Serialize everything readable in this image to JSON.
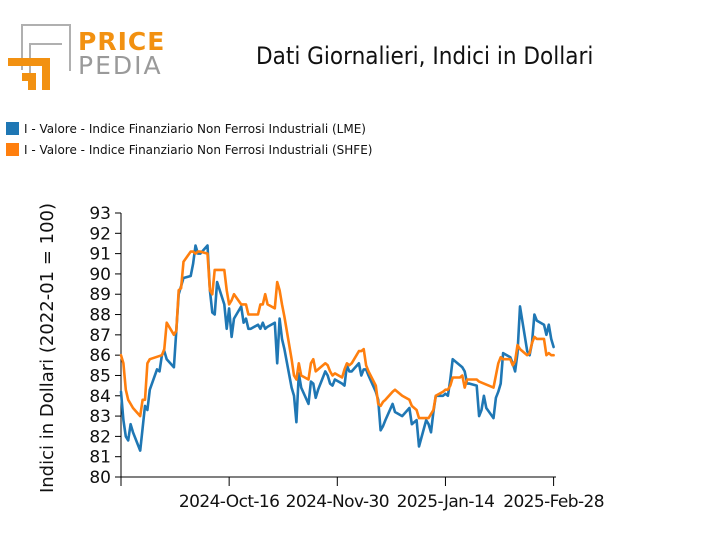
{
  "logo": {
    "line1": "PRICE",
    "line2": "PEDIA"
  },
  "chart_data": {
    "type": "line",
    "title": "Dati Giornalieri, Indici in Dollari",
    "ylabel": "Indici in Dollari (2022-01 = 100)",
    "xlabel": "",
    "ylim": [
      80,
      93
    ],
    "yticks": [
      80,
      81,
      82,
      83,
      84,
      85,
      86,
      87,
      88,
      89,
      90,
      91,
      92,
      93
    ],
    "xlim": [
      "2024-09-01",
      "2025-03-01"
    ],
    "xticks": [
      "2024-10-16",
      "2024-11-30",
      "2025-01-14",
      "2025-02-28"
    ],
    "xtick_labels": [
      "2024-Oct-16",
      "2024-Nov-30",
      "2025-Jan-14",
      "2025-Feb-28"
    ],
    "legend_position": "top-left",
    "grid": false,
    "series": [
      {
        "name": "I - Valore - Indice Finanziario Non Ferrosi Industriali (LME)",
        "color": "#1f77b4",
        "points": [
          [
            "2024-09-01",
            84.2
          ],
          [
            "2024-09-02",
            82.8
          ],
          [
            "2024-09-03",
            82.0
          ],
          [
            "2024-09-04",
            81.8
          ],
          [
            "2024-09-05",
            82.6
          ],
          [
            "2024-09-06",
            82.2
          ],
          [
            "2024-09-09",
            81.3
          ],
          [
            "2024-09-10",
            82.4
          ],
          [
            "2024-09-11",
            83.5
          ],
          [
            "2024-09-12",
            83.3
          ],
          [
            "2024-09-13",
            84.3
          ],
          [
            "2024-09-16",
            85.3
          ],
          [
            "2024-09-17",
            85.2
          ],
          [
            "2024-09-18",
            86.0
          ],
          [
            "2024-09-19",
            86.2
          ],
          [
            "2024-09-20",
            85.8
          ],
          [
            "2024-09-23",
            85.4
          ],
          [
            "2024-09-24",
            87.2
          ],
          [
            "2024-09-25",
            89.0
          ],
          [
            "2024-09-26",
            89.4
          ],
          [
            "2024-09-27",
            89.8
          ],
          [
            "2024-09-30",
            89.9
          ],
          [
            "2024-10-01",
            90.5
          ],
          [
            "2024-10-02",
            91.4
          ],
          [
            "2024-10-03",
            91.0
          ],
          [
            "2024-10-04",
            91.0
          ],
          [
            "2024-10-07",
            91.4
          ],
          [
            "2024-10-08",
            89.2
          ],
          [
            "2024-10-09",
            88.1
          ],
          [
            "2024-10-10",
            88.0
          ],
          [
            "2024-10-11",
            89.6
          ],
          [
            "2024-10-14",
            88.5
          ],
          [
            "2024-10-15",
            87.3
          ],
          [
            "2024-10-16",
            88.3
          ],
          [
            "2024-10-17",
            86.9
          ],
          [
            "2024-10-18",
            87.8
          ],
          [
            "2024-10-21",
            88.4
          ],
          [
            "2024-10-22",
            87.6
          ],
          [
            "2024-10-23",
            87.8
          ],
          [
            "2024-10-24",
            87.3
          ],
          [
            "2024-10-25",
            87.3
          ],
          [
            "2024-10-28",
            87.5
          ],
          [
            "2024-10-29",
            87.3
          ],
          [
            "2024-10-30",
            87.6
          ],
          [
            "2024-10-31",
            87.3
          ],
          [
            "2024-11-01",
            87.4
          ],
          [
            "2024-11-04",
            87.6
          ],
          [
            "2024-11-05",
            85.6
          ],
          [
            "2024-11-06",
            87.8
          ],
          [
            "2024-11-07",
            86.8
          ],
          [
            "2024-11-08",
            86.3
          ],
          [
            "2024-11-11",
            84.4
          ],
          [
            "2024-11-12",
            84.0
          ],
          [
            "2024-11-13",
            82.7
          ],
          [
            "2024-11-14",
            85.1
          ],
          [
            "2024-11-15",
            84.4
          ],
          [
            "2024-11-18",
            83.6
          ],
          [
            "2024-11-19",
            84.7
          ],
          [
            "2024-11-20",
            84.6
          ],
          [
            "2024-11-21",
            83.9
          ],
          [
            "2024-11-22",
            84.3
          ],
          [
            "2024-11-25",
            85.2
          ],
          [
            "2024-11-26",
            85.0
          ],
          [
            "2024-11-27",
            84.6
          ],
          [
            "2024-11-28",
            84.5
          ],
          [
            "2024-11-29",
            84.8
          ],
          [
            "2024-12-02",
            84.6
          ],
          [
            "2024-12-03",
            84.5
          ],
          [
            "2024-12-04",
            85.5
          ],
          [
            "2024-12-05",
            85.2
          ],
          [
            "2024-12-06",
            85.2
          ],
          [
            "2024-12-09",
            85.6
          ],
          [
            "2024-12-10",
            85.0
          ],
          [
            "2024-12-11",
            85.3
          ],
          [
            "2024-12-12",
            85.3
          ],
          [
            "2024-12-13",
            85.0
          ],
          [
            "2024-12-16",
            84.2
          ],
          [
            "2024-12-17",
            83.8
          ],
          [
            "2024-12-18",
            82.3
          ],
          [
            "2024-12-19",
            82.5
          ],
          [
            "2024-12-20",
            82.8
          ],
          [
            "2024-12-23",
            83.6
          ],
          [
            "2024-12-24",
            83.2
          ],
          [
            "2024-12-27",
            83.0
          ],
          [
            "2024-12-30",
            83.4
          ],
          [
            "2024-12-31",
            82.6
          ],
          [
            "2025-01-02",
            82.8
          ],
          [
            "2025-01-03",
            81.5
          ],
          [
            "2025-01-06",
            82.8
          ],
          [
            "2025-01-07",
            82.6
          ],
          [
            "2025-01-08",
            82.2
          ],
          [
            "2025-01-09",
            83.2
          ],
          [
            "2025-01-10",
            84.0
          ],
          [
            "2025-01-13",
            84.0
          ],
          [
            "2025-01-14",
            84.1
          ],
          [
            "2025-01-15",
            84.0
          ],
          [
            "2025-01-16",
            84.8
          ],
          [
            "2025-01-17",
            85.8
          ],
          [
            "2025-01-20",
            85.5
          ],
          [
            "2025-01-21",
            85.4
          ],
          [
            "2025-01-22",
            85.2
          ],
          [
            "2025-01-23",
            84.6
          ],
          [
            "2025-01-24",
            84.6
          ],
          [
            "2025-01-27",
            84.5
          ],
          [
            "2025-01-28",
            83.0
          ],
          [
            "2025-01-29",
            83.3
          ],
          [
            "2025-01-30",
            84.0
          ],
          [
            "2025-01-31",
            83.4
          ],
          [
            "2025-02-03",
            82.9
          ],
          [
            "2025-02-04",
            83.9
          ],
          [
            "2025-02-05",
            84.2
          ],
          [
            "2025-02-06",
            84.6
          ],
          [
            "2025-02-07",
            86.1
          ],
          [
            "2025-02-10",
            85.9
          ],
          [
            "2025-02-11",
            85.6
          ],
          [
            "2025-02-12",
            85.2
          ],
          [
            "2025-02-13",
            86.1
          ],
          [
            "2025-02-14",
            88.4
          ],
          [
            "2025-02-17",
            86.2
          ],
          [
            "2025-02-18",
            86.0
          ],
          [
            "2025-02-19",
            86.6
          ],
          [
            "2025-02-20",
            88.0
          ],
          [
            "2025-02-21",
            87.7
          ],
          [
            "2025-02-24",
            87.5
          ],
          [
            "2025-02-25",
            87.0
          ],
          [
            "2025-02-26",
            87.5
          ],
          [
            "2025-02-27",
            86.8
          ],
          [
            "2025-02-28",
            86.4
          ]
        ]
      },
      {
        "name": "I - Valore - Indice Finanziario Non Ferrosi Industriali (SHFE)",
        "color": "#ff7f0e",
        "points": [
          [
            "2024-09-01",
            86.0
          ],
          [
            "2024-09-02",
            85.6
          ],
          [
            "2024-09-03",
            84.3
          ],
          [
            "2024-09-04",
            83.8
          ],
          [
            "2024-09-05",
            83.6
          ],
          [
            "2024-09-06",
            83.4
          ],
          [
            "2024-09-09",
            83.0
          ],
          [
            "2024-09-10",
            83.8
          ],
          [
            "2024-09-11",
            83.8
          ],
          [
            "2024-09-12",
            85.6
          ],
          [
            "2024-09-13",
            85.8
          ],
          [
            "2024-09-18",
            86.0
          ],
          [
            "2024-09-19",
            86.3
          ],
          [
            "2024-09-20",
            87.6
          ],
          [
            "2024-09-23",
            87.0
          ],
          [
            "2024-09-24",
            87.2
          ],
          [
            "2024-09-25",
            89.2
          ],
          [
            "2024-09-26",
            89.3
          ],
          [
            "2024-09-27",
            90.6
          ],
          [
            "2024-09-30",
            91.1
          ],
          [
            "2024-10-01",
            91.1
          ],
          [
            "2024-10-02",
            91.0
          ],
          [
            "2024-10-03",
            91.1
          ],
          [
            "2024-10-04",
            91.1
          ],
          [
            "2024-10-07",
            91.0
          ],
          [
            "2024-10-08",
            89.2
          ],
          [
            "2024-10-09",
            89.0
          ],
          [
            "2024-10-10",
            90.2
          ],
          [
            "2024-10-11",
            90.2
          ],
          [
            "2024-10-14",
            90.2
          ],
          [
            "2024-10-15",
            89.2
          ],
          [
            "2024-10-16",
            88.5
          ],
          [
            "2024-10-17",
            88.7
          ],
          [
            "2024-10-18",
            89.0
          ],
          [
            "2024-10-21",
            88.5
          ],
          [
            "2024-10-22",
            88.5
          ],
          [
            "2024-10-23",
            88.5
          ],
          [
            "2024-10-24",
            88.0
          ],
          [
            "2024-10-25",
            88.0
          ],
          [
            "2024-10-28",
            88.0
          ],
          [
            "2024-10-29",
            88.5
          ],
          [
            "2024-10-30",
            88.5
          ],
          [
            "2024-10-31",
            89.0
          ],
          [
            "2024-11-01",
            88.5
          ],
          [
            "2024-11-04",
            88.3
          ],
          [
            "2024-11-05",
            89.6
          ],
          [
            "2024-11-06",
            89.2
          ],
          [
            "2024-11-07",
            88.5
          ],
          [
            "2024-11-08",
            87.9
          ],
          [
            "2024-11-11",
            85.8
          ],
          [
            "2024-11-12",
            85.0
          ],
          [
            "2024-11-13",
            84.8
          ],
          [
            "2024-11-14",
            85.6
          ],
          [
            "2024-11-15",
            85.0
          ],
          [
            "2024-11-18",
            84.8
          ],
          [
            "2024-11-19",
            85.6
          ],
          [
            "2024-11-20",
            85.8
          ],
          [
            "2024-11-21",
            85.2
          ],
          [
            "2024-11-22",
            85.3
          ],
          [
            "2024-11-25",
            85.6
          ],
          [
            "2024-11-26",
            85.5
          ],
          [
            "2024-11-27",
            85.2
          ],
          [
            "2024-11-28",
            85.0
          ],
          [
            "2024-11-29",
            85.1
          ],
          [
            "2024-12-02",
            84.9
          ],
          [
            "2024-12-03",
            85.3
          ],
          [
            "2024-12-04",
            85.6
          ],
          [
            "2024-12-05",
            85.5
          ],
          [
            "2024-12-06",
            85.6
          ],
          [
            "2024-12-09",
            86.2
          ],
          [
            "2024-12-10",
            86.2
          ],
          [
            "2024-12-11",
            86.3
          ],
          [
            "2024-12-12",
            85.5
          ],
          [
            "2024-12-13",
            85.2
          ],
          [
            "2024-12-16",
            84.5
          ],
          [
            "2024-12-17",
            83.6
          ],
          [
            "2024-12-18",
            83.5
          ],
          [
            "2024-12-19",
            83.7
          ],
          [
            "2024-12-20",
            83.8
          ],
          [
            "2024-12-23",
            84.2
          ],
          [
            "2024-12-24",
            84.3
          ],
          [
            "2024-12-27",
            84.0
          ],
          [
            "2024-12-30",
            83.8
          ],
          [
            "2024-12-31",
            83.5
          ],
          [
            "2025-01-02",
            83.3
          ],
          [
            "2025-01-03",
            82.9
          ],
          [
            "2025-01-06",
            82.9
          ],
          [
            "2025-01-07",
            82.9
          ],
          [
            "2025-01-08",
            83.1
          ],
          [
            "2025-01-09",
            83.3
          ],
          [
            "2025-01-10",
            84.0
          ],
          [
            "2025-01-13",
            84.2
          ],
          [
            "2025-01-14",
            84.3
          ],
          [
            "2025-01-15",
            84.3
          ],
          [
            "2025-01-16",
            84.5
          ],
          [
            "2025-01-17",
            84.9
          ],
          [
            "2025-01-20",
            84.9
          ],
          [
            "2025-01-21",
            85.0
          ],
          [
            "2025-01-22",
            84.4
          ],
          [
            "2025-01-23",
            84.8
          ],
          [
            "2025-01-24",
            84.8
          ],
          [
            "2025-01-27",
            84.8
          ],
          [
            "2025-01-28",
            84.7
          ],
          [
            "2025-02-03",
            84.4
          ],
          [
            "2025-02-05",
            85.6
          ],
          [
            "2025-02-06",
            85.9
          ],
          [
            "2025-02-07",
            85.8
          ],
          [
            "2025-02-10",
            85.8
          ],
          [
            "2025-02-11",
            85.5
          ],
          [
            "2025-02-12",
            85.7
          ],
          [
            "2025-02-13",
            86.5
          ],
          [
            "2025-02-14",
            86.3
          ],
          [
            "2025-02-17",
            86.0
          ],
          [
            "2025-02-18",
            86.1
          ],
          [
            "2025-02-19",
            86.6
          ],
          [
            "2025-02-20",
            86.9
          ],
          [
            "2025-02-21",
            86.8
          ],
          [
            "2025-02-24",
            86.8
          ],
          [
            "2025-02-25",
            86.0
          ],
          [
            "2025-02-26",
            86.1
          ],
          [
            "2025-02-27",
            86.0
          ],
          [
            "2025-02-28",
            86.0
          ]
        ]
      }
    ]
  }
}
